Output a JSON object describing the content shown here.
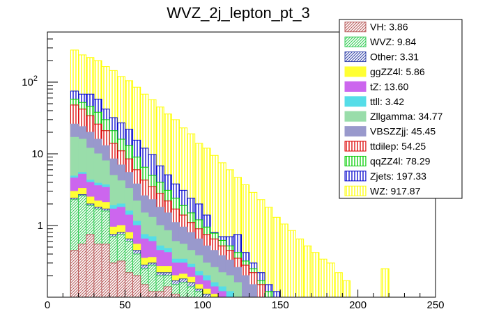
{
  "chart_data": {
    "type": "bar",
    "title": "WVZ_2j_lepton_pt_3",
    "x_ticks": [
      "0",
      "50",
      "100",
      "150",
      "200",
      "250"
    ],
    "y_ticks": [
      "1",
      "10",
      "10^2"
    ],
    "xlim": [
      0,
      250
    ],
    "ylim": [
      0.1,
      500
    ],
    "log_y": true,
    "stacked": true,
    "bin_width": 5,
    "x": [
      15,
      20,
      25,
      30,
      35,
      40,
      45,
      50,
      55,
      60,
      65,
      70,
      75,
      80,
      85,
      90,
      95,
      100,
      105,
      110,
      115,
      120,
      125,
      130,
      135,
      140,
      145,
      150,
      155,
      160,
      165,
      170,
      175,
      180,
      185,
      190,
      195,
      200,
      205,
      210,
      215
    ],
    "legend": [
      {
        "label": "VH: 3.86",
        "color": "#b85a5a",
        "pattern": "diag"
      },
      {
        "label": "WVZ: 9.84",
        "color": "#33cc55",
        "pattern": "diag"
      },
      {
        "label": "Other: 3.31",
        "color": "#3344aa",
        "pattern": "diag"
      },
      {
        "label": "ggZZ4l: 5.86",
        "color": "#ffff33",
        "pattern": "solid"
      },
      {
        "label": "tZ: 13.60",
        "color": "#cc66ee",
        "pattern": "solid"
      },
      {
        "label": "ttll: 3.42",
        "color": "#55dde8",
        "pattern": "solid"
      },
      {
        "label": "Zllgamma: 34.77",
        "color": "#99ddaa",
        "pattern": "solid"
      },
      {
        "label": "VBSZZjj: 45.45",
        "color": "#9999cc",
        "pattern": "solid"
      },
      {
        "label": "ttdilep: 54.25",
        "color": "#dd0000",
        "pattern": "vert"
      },
      {
        "label": "qqZZ4l: 78.29",
        "color": "#00cc00",
        "pattern": "vert"
      },
      {
        "label": "Zjets: 197.33",
        "color": "#0000cc",
        "pattern": "vert"
      },
      {
        "label": "WZ: 917.87",
        "color": "#ffff00",
        "pattern": "vert"
      }
    ],
    "stack_tops": [
      {
        "name": "VH: 3.86",
        "values": [
          0.45,
          0.55,
          0.75,
          0.55,
          0.55,
          0.3,
          0.32,
          0.22,
          0.2,
          0.15,
          0.12,
          0.12,
          0.14,
          0.11,
          0.1,
          0.1,
          0,
          0,
          0,
          0,
          0,
          0,
          0,
          0,
          0,
          0,
          0,
          0,
          0,
          0,
          0,
          0,
          0,
          0,
          0,
          0,
          0,
          0,
          0,
          0,
          0
        ]
      },
      {
        "name": "WVZ: 9.84",
        "values": [
          2.3,
          2.6,
          1.9,
          1.7,
          1.6,
          0.7,
          0.75,
          0.6,
          0.4,
          0.25,
          0.28,
          0.2,
          0.2,
          0.15,
          0.16,
          0.14,
          0.12,
          0,
          0,
          0,
          0,
          0,
          0,
          0,
          0,
          0,
          0,
          0,
          0,
          0,
          0,
          0,
          0,
          0,
          0,
          0,
          0,
          0,
          0,
          0,
          0
        ]
      },
      {
        "name": "Other: 3.31",
        "values": [
          2.4,
          2.7,
          2.0,
          1.8,
          1.7,
          0.75,
          0.8,
          0.65,
          0.45,
          0.28,
          0.3,
          0.22,
          0.22,
          0.17,
          0.18,
          0.16,
          0.13,
          0.11,
          0,
          0,
          0,
          0,
          0,
          0,
          0,
          0,
          0,
          0,
          0,
          0,
          0,
          0,
          0,
          0,
          0,
          0,
          0,
          0,
          0,
          0,
          0
        ]
      },
      {
        "name": "ggZZ4l: 5.86",
        "values": [
          3.0,
          3.3,
          2.5,
          2.2,
          2.1,
          0.95,
          1.0,
          0.8,
          0.55,
          0.35,
          0.36,
          0.27,
          0.27,
          0.2,
          0.21,
          0.19,
          0.15,
          0.13,
          0.11,
          0,
          0,
          0,
          0,
          0,
          0,
          0,
          0,
          0,
          0,
          0,
          0,
          0,
          0,
          0,
          0,
          0,
          0,
          0,
          0,
          0,
          0
        ]
      },
      {
        "name": "tZ: 13.60",
        "values": [
          4.6,
          5.2,
          4.0,
          3.6,
          3.4,
          1.7,
          1.8,
          1.4,
          1.0,
          0.65,
          0.6,
          0.45,
          0.42,
          0.3,
          0.3,
          0.26,
          0.2,
          0.17,
          0.14,
          0.12,
          0,
          0,
          0,
          0,
          0,
          0,
          0,
          0,
          0,
          0,
          0,
          0,
          0,
          0,
          0,
          0,
          0,
          0,
          0,
          0,
          0
        ]
      },
      {
        "name": "ttll: 3.42",
        "values": [
          4.9,
          5.5,
          4.3,
          3.9,
          3.7,
          1.9,
          2.0,
          1.6,
          1.15,
          0.75,
          0.7,
          0.52,
          0.48,
          0.34,
          0.34,
          0.29,
          0.23,
          0.2,
          0.16,
          0.14,
          0.12,
          0,
          0,
          0,
          0,
          0,
          0,
          0,
          0,
          0,
          0,
          0,
          0,
          0,
          0,
          0,
          0,
          0,
          0,
          0,
          0
        ]
      },
      {
        "name": "Zllgamma: 34.77",
        "values": [
          17,
          16,
          12,
          10,
          8,
          5,
          4.2,
          3.3,
          2.2,
          1.5,
          1.3,
          1.0,
          0.85,
          0.6,
          0.55,
          0.45,
          0.38,
          0.3,
          0.26,
          0.22,
          0.2,
          0.16,
          0,
          0,
          0,
          0,
          0,
          0,
          0,
          0,
          0,
          0,
          0,
          0,
          0,
          0,
          0,
          0,
          0,
          0,
          0
        ]
      },
      {
        "name": "VBSZZjj: 45.45",
        "values": [
          26,
          24,
          20,
          16,
          13,
          8.5,
          7,
          5.5,
          3.8,
          2.6,
          2.3,
          1.8,
          1.5,
          1.1,
          0.95,
          0.8,
          0.65,
          0.52,
          0.45,
          0.38,
          0.33,
          0.26,
          0.2,
          0.15,
          0,
          0,
          0,
          0,
          0,
          0,
          0,
          0,
          0,
          0,
          0,
          0,
          0,
          0,
          0,
          0,
          0
        ]
      },
      {
        "name": "ttdilep: 54.25",
        "values": [
          48,
          42,
          34,
          26,
          21,
          14,
          11,
          8.5,
          6,
          4.3,
          3.5,
          2.8,
          2.2,
          1.7,
          1.4,
          1.1,
          0.9,
          0.75,
          0.65,
          0.52,
          0.45,
          0.35,
          0.28,
          0.22,
          0.15,
          0,
          0,
          0,
          0,
          0,
          0,
          0,
          0,
          0,
          0,
          0,
          0,
          0,
          0,
          0,
          0
        ]
      },
      {
        "name": "qqZZ4l: 78.29",
        "values": [
          58,
          52,
          46,
          38,
          30,
          21,
          16,
          13,
          9,
          6.5,
          5,
          4,
          3.1,
          2.4,
          1.9,
          1.5,
          1.2,
          0.95,
          0.78,
          0.62,
          0.52,
          0.42,
          0.32,
          0.25,
          0.17,
          0.12,
          0,
          0,
          0,
          0,
          0,
          0,
          0,
          0,
          0,
          0,
          0,
          0,
          0,
          0,
          0
        ]
      },
      {
        "name": "Zjets: 197.33",
        "values": [
          75,
          68,
          68,
          58,
          42,
          32,
          27,
          22,
          15.5,
          12,
          9.8,
          6.8,
          5.1,
          3.8,
          3.1,
          2.4,
          2.0,
          1.4,
          0.8,
          0.7,
          0.7,
          0.75,
          0.42,
          0.3,
          0.22,
          0.15,
          0.12,
          0,
          0,
          0,
          0,
          0,
          0,
          0,
          0,
          0,
          0,
          0,
          0,
          0,
          0
        ]
      },
      {
        "name": "WZ: 917.87",
        "values": [
          280,
          240,
          220,
          200,
          165,
          145,
          120,
          105,
          85,
          68,
          57,
          45,
          36,
          30,
          23,
          19,
          14,
          12,
          9.5,
          7.5,
          6,
          4.7,
          3.7,
          2.9,
          2.3,
          1.8,
          1.3,
          1.05,
          0.85,
          0.65,
          0.52,
          0.42,
          0.34,
          0.3,
          0.22,
          0.17,
          0.1,
          0,
          0,
          0,
          0.25
        ]
      }
    ]
  }
}
